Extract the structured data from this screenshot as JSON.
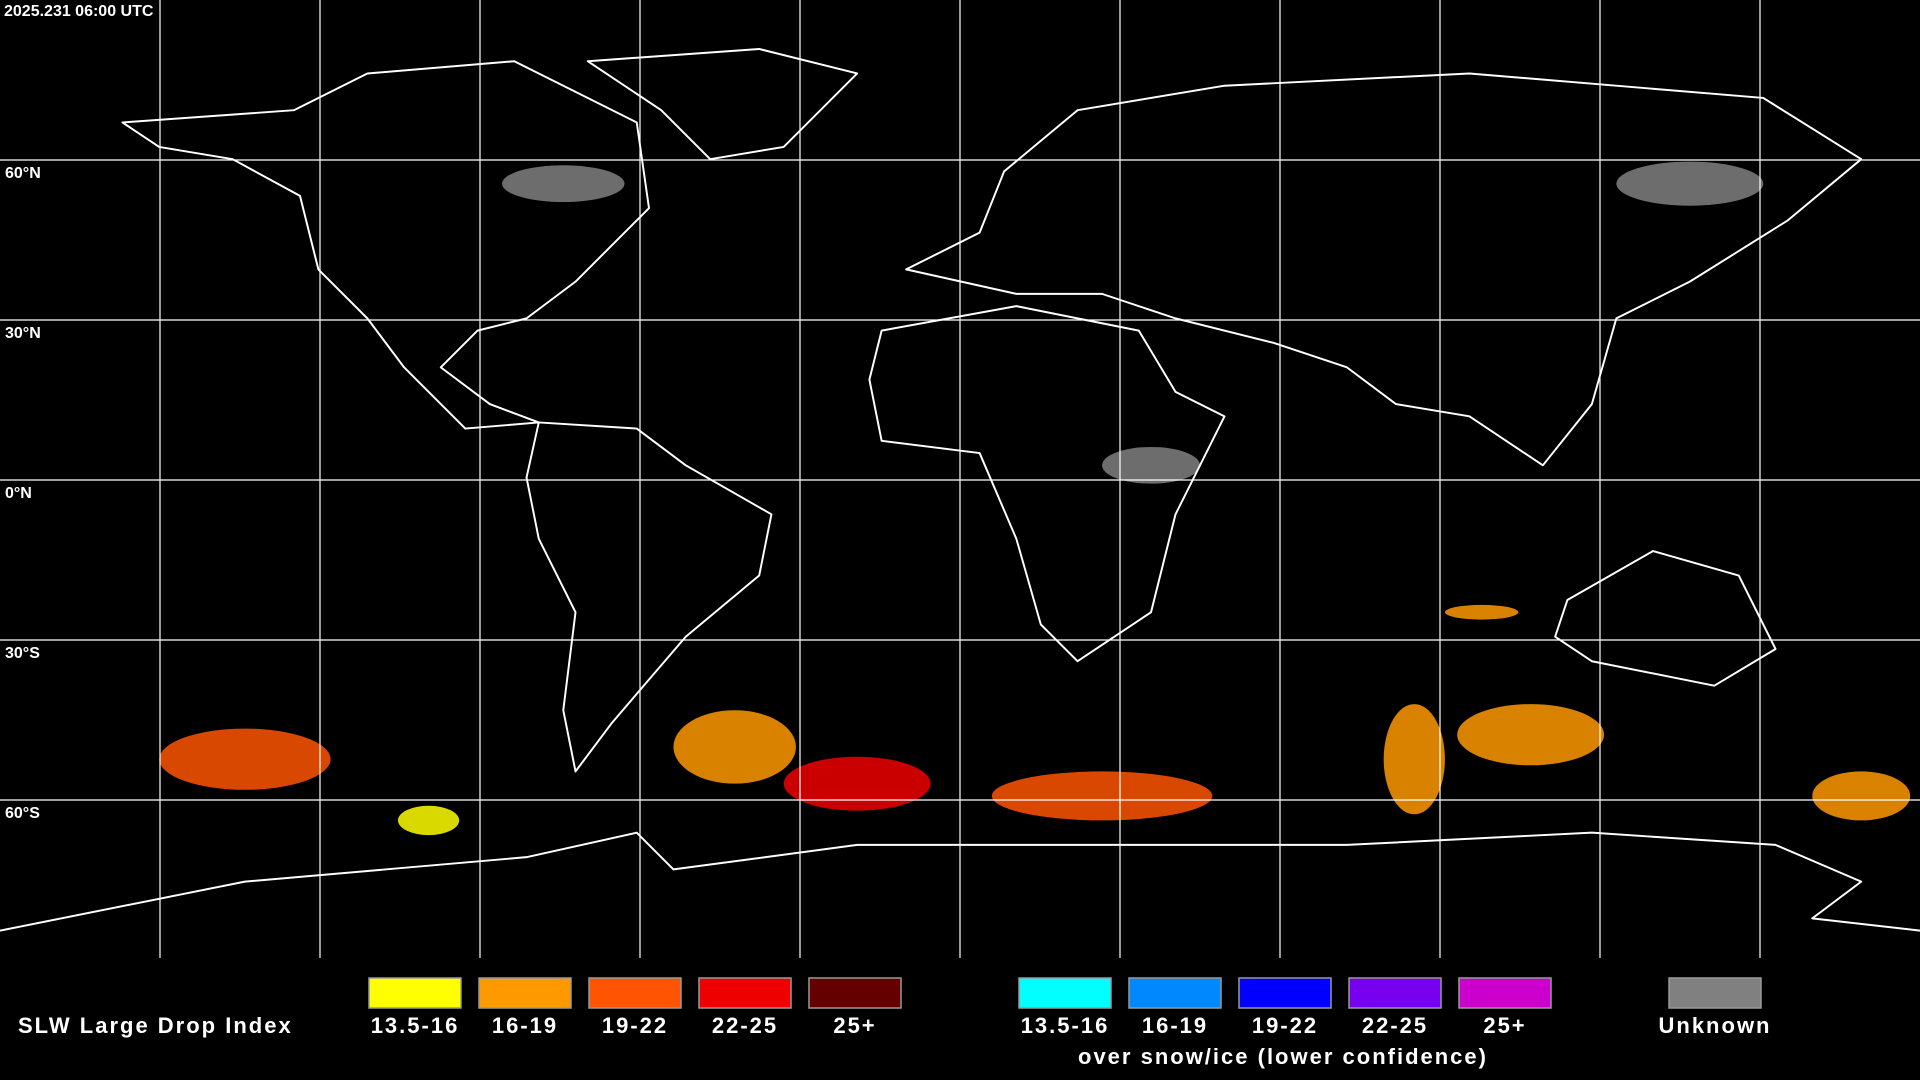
{
  "timestamp": "2025.231 06:00 UTC",
  "latitude_labels": [
    "60°N",
    "30°N",
    "0°N",
    "30°S",
    "60°S"
  ],
  "legend": {
    "title": "SLW Large Drop Index",
    "items": [
      {
        "label": "13.5-16",
        "color": "#ffff00"
      },
      {
        "label": "16-19",
        "color": "#ff9900"
      },
      {
        "label": "19-22",
        "color": "#ff5500"
      },
      {
        "label": "22-25",
        "color": "#ee0000"
      },
      {
        "label": "25+",
        "color": "#660000"
      }
    ],
    "snow_ice_items": [
      {
        "label": "13.5-16",
        "color": "#00ffff"
      },
      {
        "label": "16-19",
        "color": "#0088ff"
      },
      {
        "label": "19-22",
        "color": "#0000ff"
      },
      {
        "label": "22-25",
        "color": "#7700ee"
      },
      {
        "label": "25+",
        "color": "#cc00cc"
      }
    ],
    "snow_ice_note": "over snow/ice (lower confidence)",
    "unknown": {
      "label": "Unknown",
      "color": "#808080"
    }
  }
}
